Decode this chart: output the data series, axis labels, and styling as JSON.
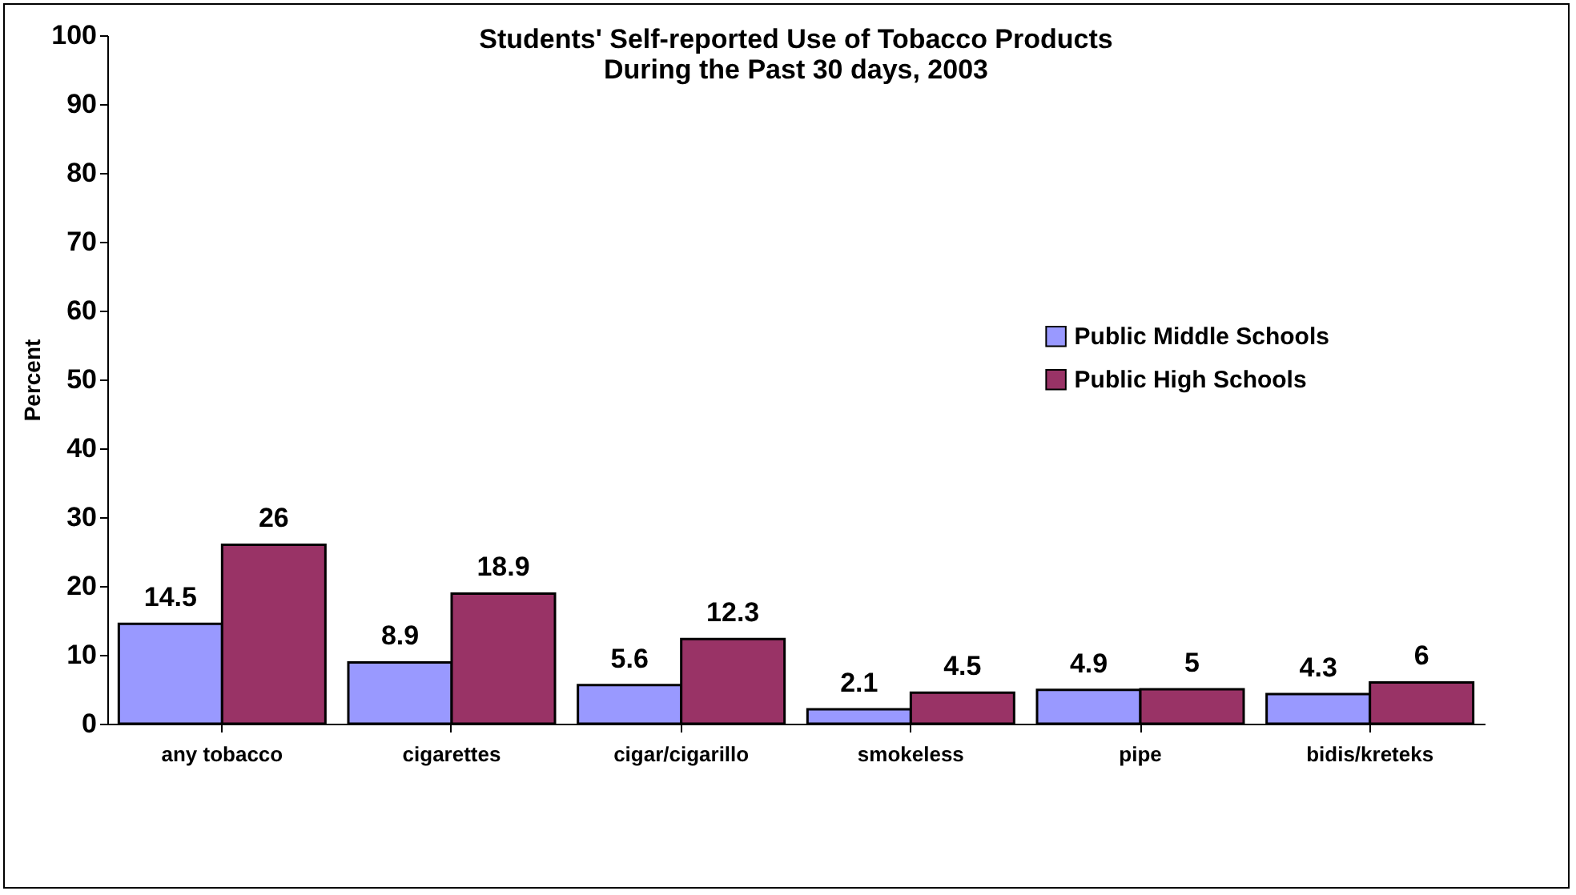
{
  "chart_data": {
    "type": "bar",
    "title": "Students' Self-reported Use of Tobacco Products\nDuring the Past 30 days, 2003",
    "ylabel": "Percent",
    "categories": [
      "any tobacco",
      "cigarettes",
      "cigar/cigarillo",
      "smokeless",
      "pipe",
      "bidis/kreteks"
    ],
    "series": [
      {
        "name": "Public Middle Schools",
        "color": "#9999ff",
        "values": [
          14.5,
          8.9,
          5.6,
          2.1,
          4.9,
          4.3
        ]
      },
      {
        "name": "Public High Schools",
        "color": "#993366",
        "values": [
          26,
          18.9,
          12.3,
          4.5,
          5,
          6
        ]
      }
    ],
    "ylim": [
      0,
      100
    ],
    "yticks": [
      0,
      10,
      20,
      30,
      40,
      50,
      60,
      70,
      80,
      90,
      100
    ],
    "data_labels": true,
    "legend": "right",
    "grid": false
  }
}
